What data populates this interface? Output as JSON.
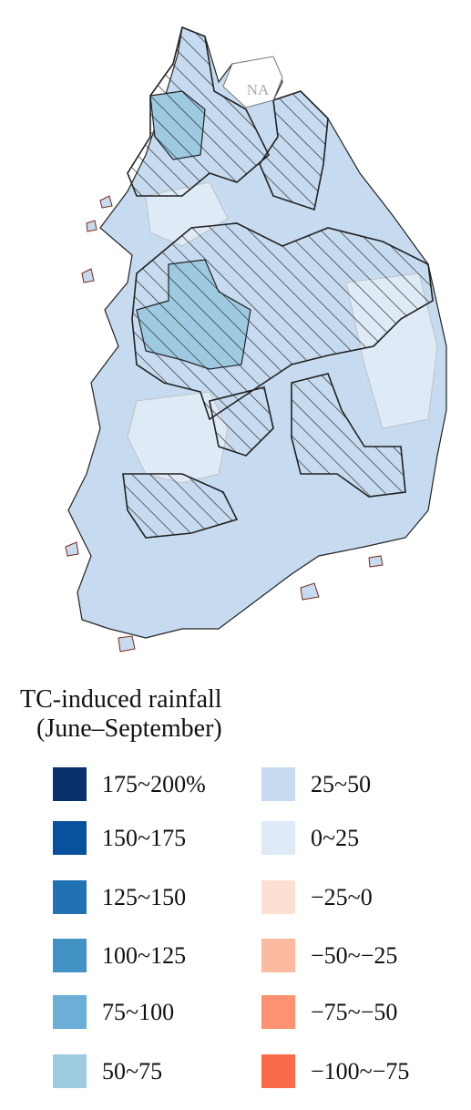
{
  "map": {
    "na_label": "NA"
  },
  "legend": {
    "title": [
      "TC-induced rainfall",
      "(June–September)"
    ],
    "columns": [
      [
        {
          "label": "175~200%",
          "color": "#08306b"
        },
        {
          "label": "150~175",
          "color": "#08519c"
        },
        {
          "label": "125~150",
          "color": "#2171b5"
        },
        {
          "label": "100~125",
          "color": "#4292c6"
        },
        {
          "label": "75~100",
          "color": "#6baed6"
        },
        {
          "label": "50~75",
          "color": "#9ecae1"
        }
      ],
      [
        {
          "label": "25~50",
          "color": "#c6dbef"
        },
        {
          "label": "0~25",
          "color": "#deebf7"
        },
        {
          "label": "−25~0",
          "color": "#fee0d2"
        },
        {
          "label": "−50~−25",
          "color": "#fcbba1"
        },
        {
          "label": "−75~−50",
          "color": "#fc9272"
        },
        {
          "label": "−100~−75",
          "color": "#fb6a4a"
        }
      ]
    ]
  }
}
